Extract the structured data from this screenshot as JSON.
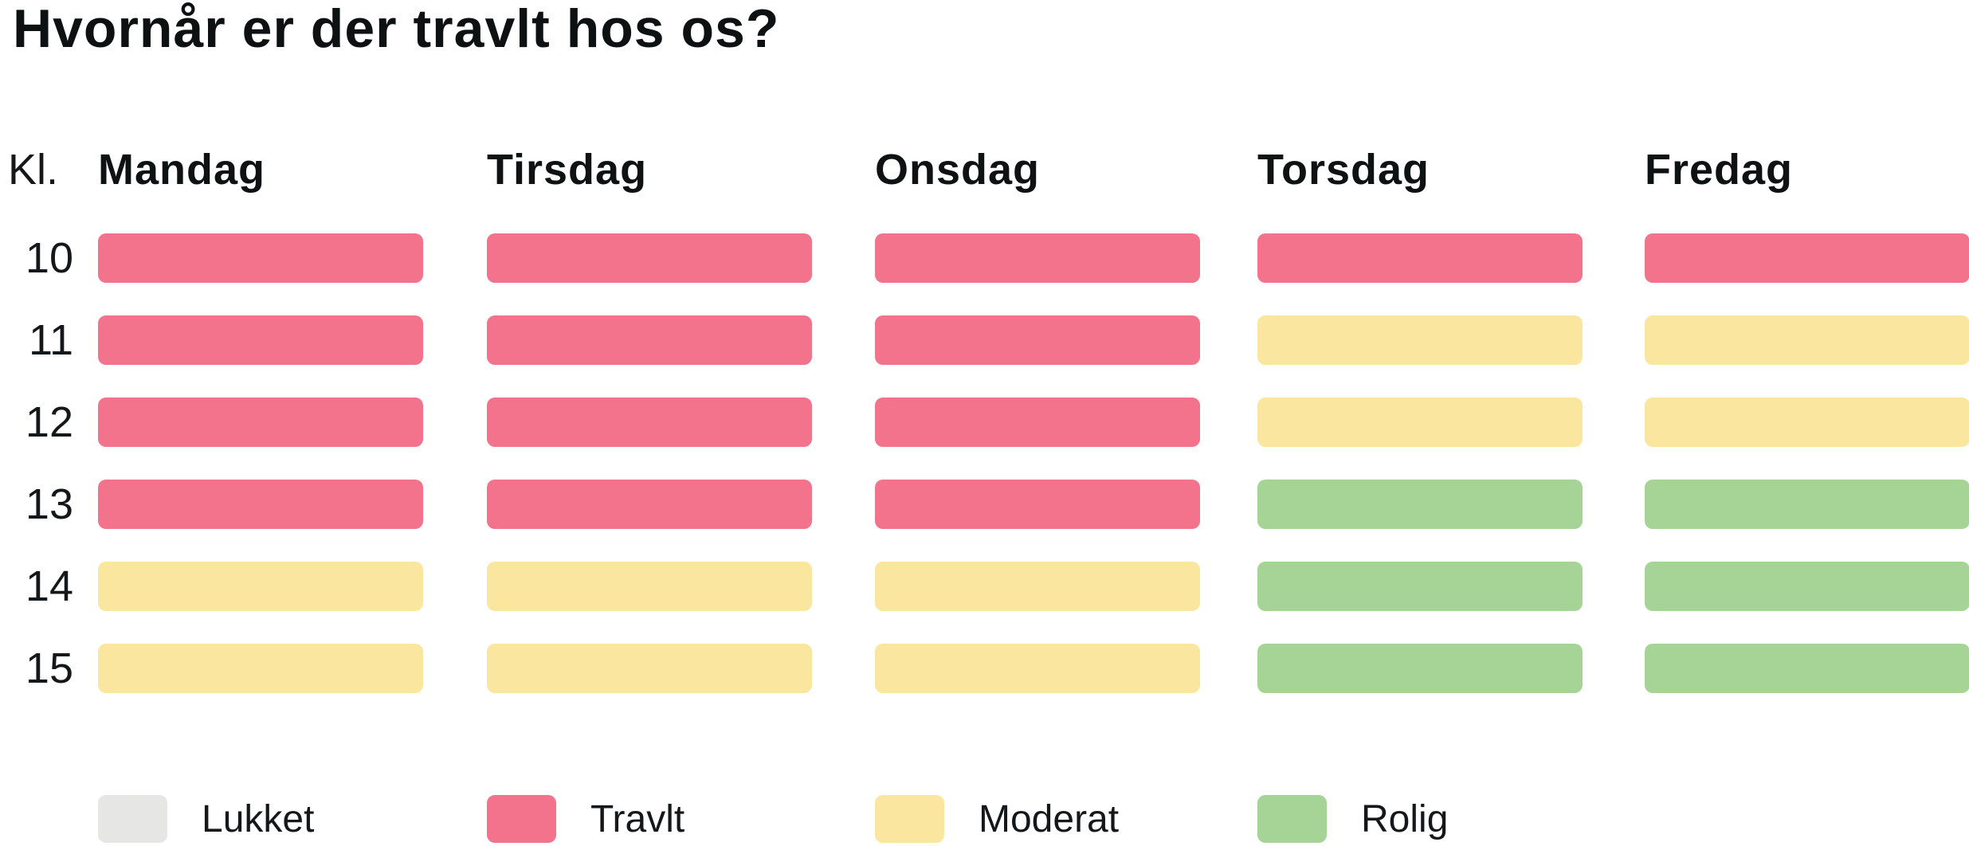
{
  "title": "Hvornår er der travlt hos os?",
  "hour_column_header": "Kl.",
  "days": [
    "Mandag",
    "Tirsdag",
    "Onsdag",
    "Torsdag",
    "Fredag"
  ],
  "hours": [
    "10",
    "11",
    "12",
    "13",
    "14",
    "15"
  ],
  "legend": [
    {
      "label": "Lukket",
      "key": "lukket",
      "color": "#E6E6E5"
    },
    {
      "label": "Travlt",
      "key": "travlt",
      "color": "#F2738B"
    },
    {
      "label": "Moderat",
      "key": "moderat",
      "color": "#FAE69F"
    },
    {
      "label": "Rolig",
      "key": "rolig",
      "color": "#A6D497"
    }
  ],
  "chart_data": {
    "type": "heatmap",
    "title": "Hvornår er der travlt hos os?",
    "xlabel": "",
    "ylabel": "Kl.",
    "x_categories": [
      "Mandag",
      "Tirsdag",
      "Onsdag",
      "Torsdag",
      "Fredag"
    ],
    "y_categories": [
      "10",
      "11",
      "12",
      "13",
      "14",
      "15"
    ],
    "values": [
      [
        "travlt",
        "travlt",
        "travlt",
        "travlt",
        "travlt"
      ],
      [
        "travlt",
        "travlt",
        "travlt",
        "moderat",
        "moderat"
      ],
      [
        "travlt",
        "travlt",
        "travlt",
        "moderat",
        "moderat"
      ],
      [
        "travlt",
        "travlt",
        "travlt",
        "rolig",
        "rolig"
      ],
      [
        "moderat",
        "moderat",
        "moderat",
        "rolig",
        "rolig"
      ],
      [
        "moderat",
        "moderat",
        "moderat",
        "rolig",
        "rolig"
      ]
    ],
    "legend_entries": [
      "Lukket",
      "Travlt",
      "Moderat",
      "Rolig"
    ],
    "colors": {
      "lukket": "#E6E6E5",
      "travlt": "#F2738B",
      "moderat": "#FAE69F",
      "rolig": "#A6D497"
    },
    "grid": false,
    "legend_position": "bottom"
  }
}
